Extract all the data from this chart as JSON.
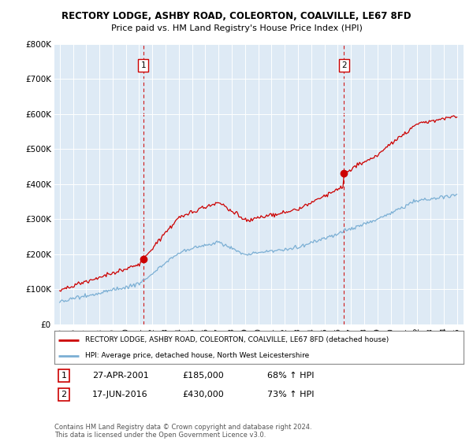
{
  "title_line1": "RECTORY LODGE, ASHBY ROAD, COLEORTON, COALVILLE, LE67 8FD",
  "title_line2": "Price paid vs. HM Land Registry's House Price Index (HPI)",
  "ylim": [
    0,
    800000
  ],
  "yticks": [
    0,
    100000,
    200000,
    300000,
    400000,
    500000,
    600000,
    700000,
    800000
  ],
  "ytick_labels": [
    "£0",
    "£100K",
    "£200K",
    "£300K",
    "£400K",
    "£500K",
    "£600K",
    "£700K",
    "£800K"
  ],
  "purchase1_year": 2001.32,
  "purchase1_price": 185000,
  "purchase1_label": "1",
  "purchase1_date": "27-APR-2001",
  "purchase1_hpi": "68% ↑ HPI",
  "purchase2_year": 2016.46,
  "purchase2_price": 430000,
  "purchase2_label": "2",
  "purchase2_date": "17-JUN-2016",
  "purchase2_hpi": "73% ↑ HPI",
  "property_color": "#cc0000",
  "hpi_color": "#7bafd4",
  "dashed_line_color": "#cc0000",
  "plot_bg_color": "#deeaf5",
  "background_color": "#ffffff",
  "grid_color": "#ffffff",
  "legend_property_label": "RECTORY LODGE, ASHBY ROAD, COLEORTON, COALVILLE, LE67 8FD (detached house)",
  "legend_hpi_label": "HPI: Average price, detached house, North West Leicestershire",
  "footer_text": "Contains HM Land Registry data © Crown copyright and database right 2024.\nThis data is licensed under the Open Government Licence v3.0."
}
